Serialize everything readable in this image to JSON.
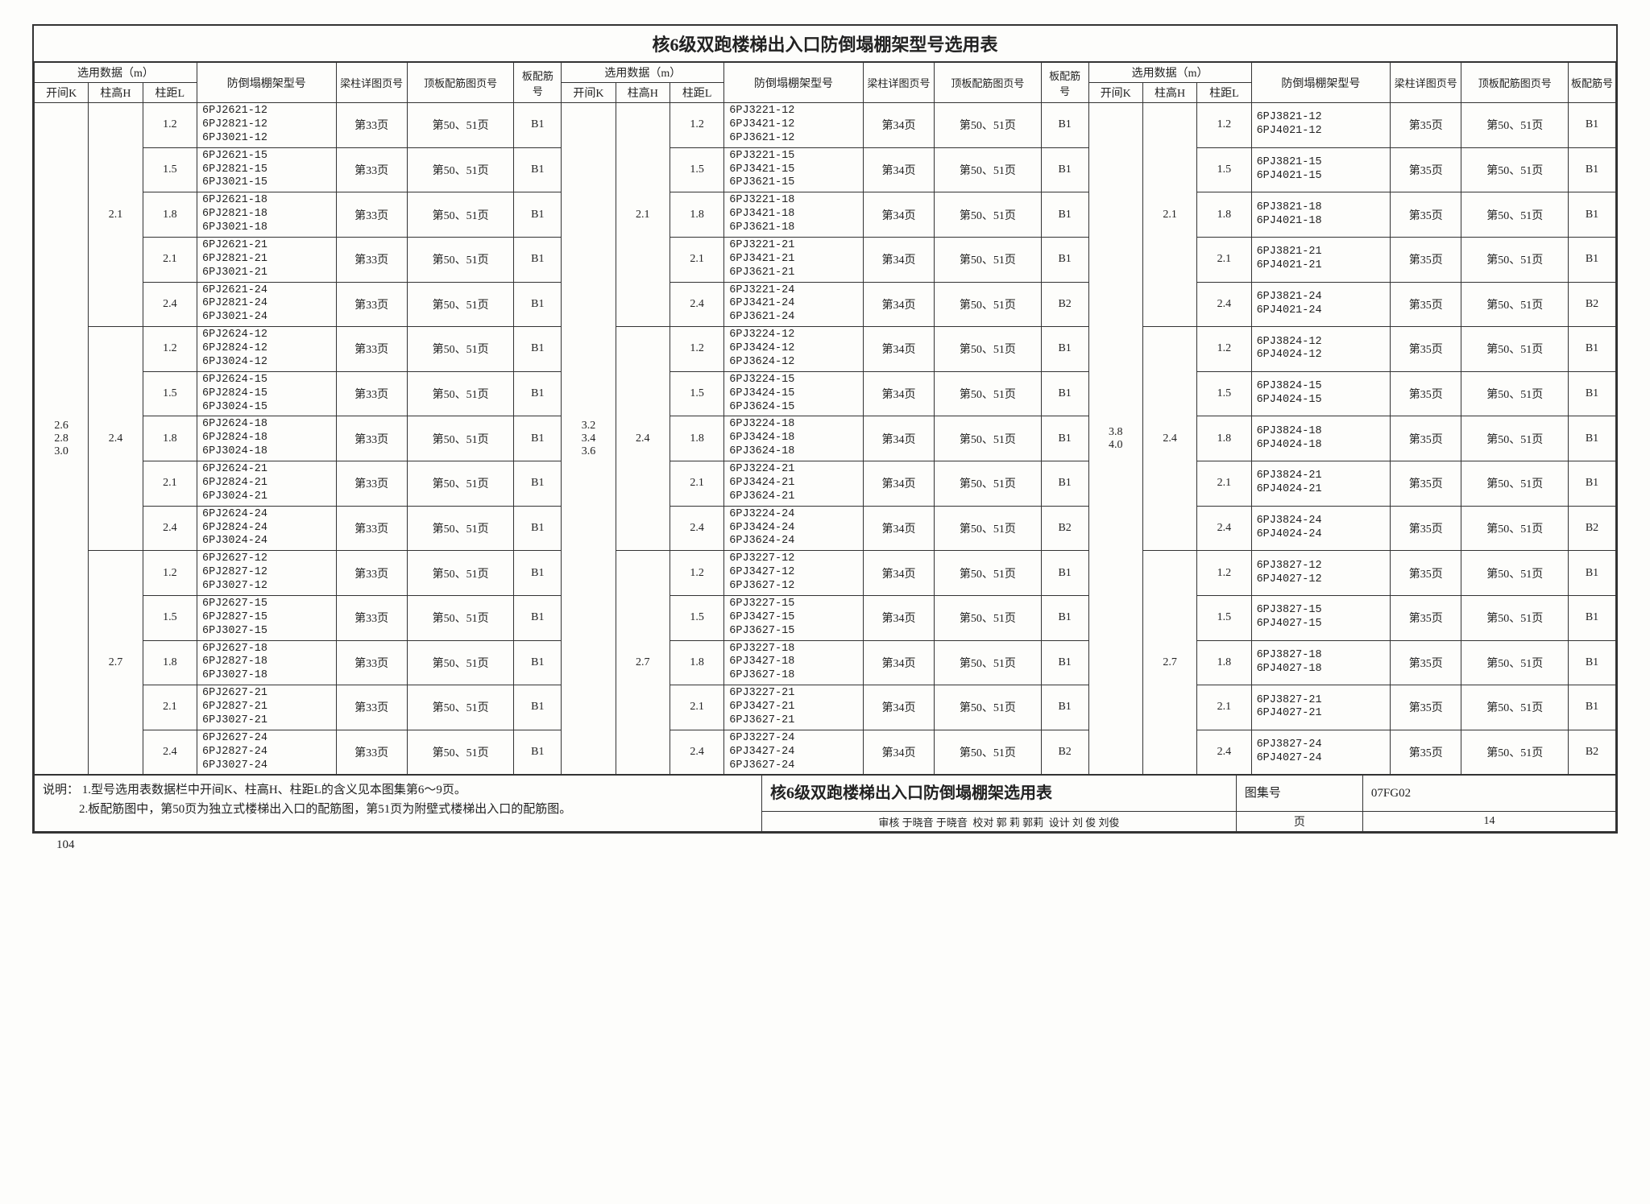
{
  "title": "核6级双跑楼梯出入口防倒塌棚架型号选用表",
  "header": {
    "sel": "选用数据（m）",
    "K": "开间K",
    "H": "柱高H",
    "L": "柱距L",
    "model": "防倒塌棚架型号",
    "page1": "梁柱详图页号",
    "page2": "顶板配筋图页号",
    "page3": "板配筋号"
  },
  "common": {
    "p2": "第50、51页",
    "b1": "B1",
    "b2": "B2"
  },
  "blocks": [
    {
      "K": "2.6\n2.8\n3.0",
      "p1": "第33页",
      "modelPrefixes": [
        "6PJ26",
        "6PJ28",
        "6PJ30"
      ],
      "modelLines": 3
    },
    {
      "K": "3.2\n3.4\n3.6",
      "p1": "第34页",
      "modelPrefixes": [
        "6PJ32",
        "6PJ34",
        "6PJ36"
      ],
      "modelLines": 3
    },
    {
      "K": "3.8\n4.0",
      "p1": "第35页",
      "modelPrefixes": [
        "6PJ38",
        "6PJ40"
      ],
      "modelLines": 2
    }
  ],
  "Hgroups": [
    {
      "H": "2.1",
      "Hcode": "21"
    },
    {
      "H": "2.4",
      "Hcode": "24"
    },
    {
      "H": "2.7",
      "Hcode": "27"
    }
  ],
  "Lrows": [
    {
      "L": "1.2",
      "Lcode": "12",
      "p3key": "b1"
    },
    {
      "L": "1.5",
      "Lcode": "15",
      "p3key": "b1"
    },
    {
      "L": "1.8",
      "Lcode": "18",
      "p3key": "b1"
    },
    {
      "L": "2.1",
      "Lcode": "21",
      "p3key": "b1"
    },
    {
      "L": "2.4",
      "Lcode": "24",
      "p3key": "b2"
    }
  ],
  "b2_override": {
    "blockIndex": 0,
    "p3key": "b1"
  },
  "notes_label": "说明：",
  "notes": [
    "1.型号选用表数据栏中开间K、柱高H、柱距L的含义见本图集第6～9页。",
    "2.板配筋图中，第50页为独立式楼梯出入口的配筋图，第51页为附壁式楼梯出入口的配筋图。"
  ],
  "footer": {
    "title2": "核6级双跑楼梯出入口防倒塌棚架选用表",
    "atlas_label": "图集号",
    "atlas": "07FG02",
    "review_label": "审核",
    "review_name": "于晓音",
    "review_sig": "于晓音",
    "check_label": "校对",
    "check_name": "郭 莉",
    "check_sig": "郭莉",
    "design_label": "设计",
    "design_name": "刘 俊",
    "design_sig": "刘俊",
    "page_label": "页",
    "page": "14"
  },
  "page_number": "104"
}
